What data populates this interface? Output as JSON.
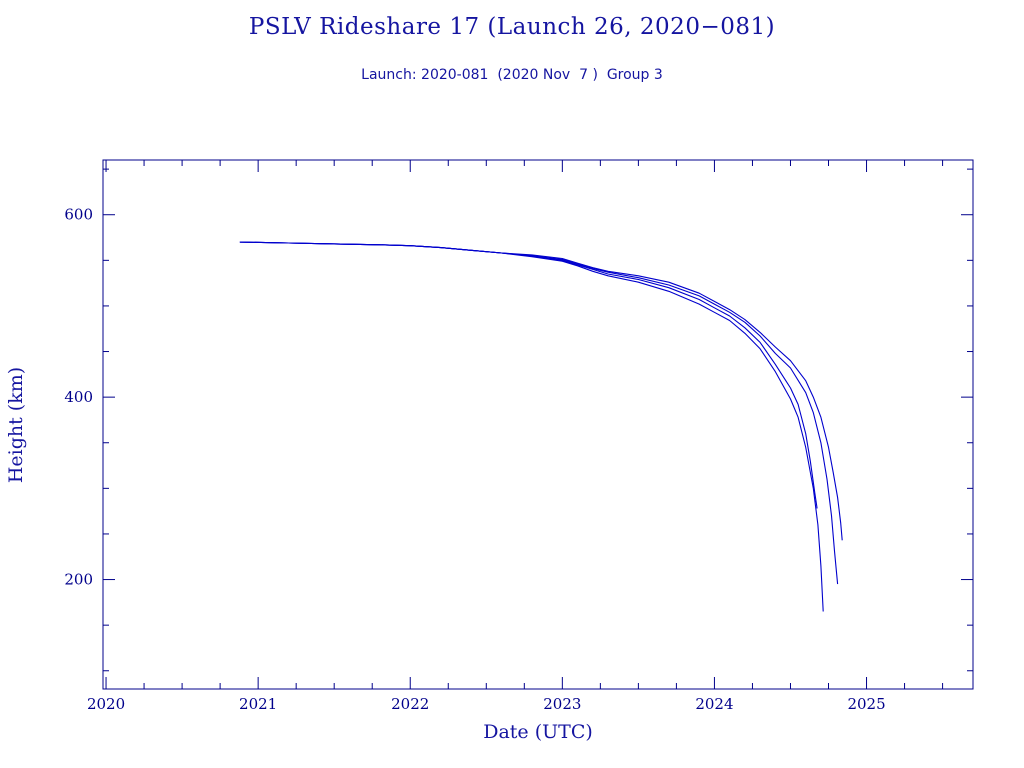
{
  "chart_data": {
    "type": "line",
    "title": "PSLV Rideshare 17 (Launch 26, 2020−081)",
    "subtitle": "Launch: 2020-081  (2020 Nov  7 )  Group 3",
    "xlabel": "Date (UTC)",
    "ylabel": "Height (km)",
    "xlim": [
      2019.98,
      2025.7
    ],
    "ylim": [
      80,
      660
    ],
    "x_ticks": [
      2020,
      2021,
      2022,
      2023,
      2024,
      2025
    ],
    "y_ticks": [
      200,
      400,
      600
    ],
    "grid": false,
    "colors": {
      "axes": "#00008b",
      "series": "#0000cd",
      "text": "#1515a0"
    },
    "series": [
      {
        "x": [
          2020.88,
          2021.2,
          2021.5,
          2021.8,
          2022.0,
          2022.2,
          2022.4,
          2022.6,
          2022.8,
          2023.0,
          2023.1,
          2023.2,
          2023.3,
          2023.5,
          2023.7,
          2023.9,
          2024.0,
          2024.1,
          2024.2,
          2024.3,
          2024.4,
          2024.5,
          2024.55,
          2024.6,
          2024.65,
          2024.68,
          2024.7,
          2024.715
        ],
        "y": [
          570,
          569,
          568,
          567,
          566,
          564,
          561,
          558,
          554,
          549,
          544,
          538,
          533,
          526,
          516,
          502,
          493,
          484,
          470,
          453,
          428,
          398,
          378,
          345,
          300,
          260,
          215,
          165
        ]
      },
      {
        "x": [
          2020.88,
          2021.2,
          2021.5,
          2021.8,
          2022.0,
          2022.2,
          2022.4,
          2022.6,
          2022.8,
          2023.0,
          2023.1,
          2023.2,
          2023.3,
          2023.5,
          2023.7,
          2023.9,
          2024.0,
          2024.1,
          2024.2,
          2024.3,
          2024.4,
          2024.5,
          2024.55,
          2024.6,
          2024.63,
          2024.66,
          2024.675
        ],
        "y": [
          570,
          569,
          568,
          567,
          566,
          564,
          561,
          558,
          555,
          550,
          545,
          540,
          535,
          529,
          520,
          507,
          498,
          489,
          476,
          460,
          436,
          410,
          392,
          360,
          330,
          295,
          278
        ]
      },
      {
        "x": [
          2020.88,
          2021.2,
          2021.5,
          2021.8,
          2022.0,
          2022.2,
          2022.4,
          2022.6,
          2022.8,
          2023.0,
          2023.1,
          2023.2,
          2023.3,
          2023.5,
          2023.7,
          2023.9,
          2024.0,
          2024.1,
          2024.2,
          2024.3,
          2024.4,
          2024.5,
          2024.6,
          2024.65,
          2024.7,
          2024.74,
          2024.77,
          2024.79,
          2024.81
        ],
        "y": [
          570,
          569,
          568,
          567,
          566,
          564,
          561,
          558,
          555,
          551,
          546,
          541,
          537,
          531,
          523,
          511,
          502,
          493,
          482,
          467,
          448,
          432,
          405,
          383,
          350,
          310,
          270,
          230,
          195
        ]
      },
      {
        "x": [
          2020.88,
          2021.2,
          2021.5,
          2021.8,
          2022.0,
          2022.2,
          2022.4,
          2022.6,
          2022.8,
          2023.0,
          2023.1,
          2023.2,
          2023.3,
          2023.5,
          2023.7,
          2023.9,
          2024.0,
          2024.1,
          2024.2,
          2024.3,
          2024.4,
          2024.5,
          2024.6,
          2024.65,
          2024.7,
          2024.75,
          2024.78,
          2024.81,
          2024.83,
          2024.84
        ],
        "y": [
          570,
          569,
          568,
          567,
          566,
          564,
          561,
          558,
          556,
          552,
          547,
          542,
          538,
          533,
          526,
          514,
          505,
          496,
          485,
          471,
          455,
          440,
          418,
          400,
          378,
          345,
          318,
          290,
          262,
          243
        ]
      }
    ]
  }
}
